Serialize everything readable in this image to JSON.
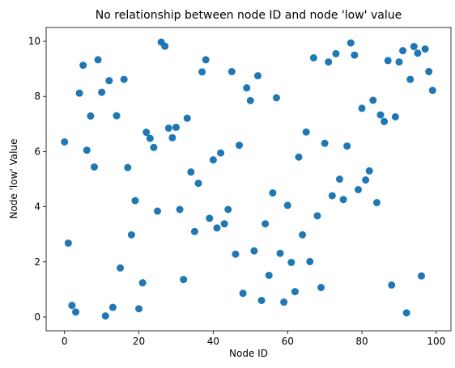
{
  "chart_data": {
    "type": "scatter",
    "title": "No relationship between node ID and node 'low' value",
    "xlabel": "Node ID",
    "ylabel": "Node 'low' Value",
    "color": "#1f77b4",
    "x": [
      0,
      1,
      2,
      3,
      4,
      5,
      6,
      7,
      8,
      9,
      10,
      11,
      12,
      13,
      14,
      15,
      16,
      17,
      18,
      19,
      20,
      21,
      22,
      23,
      24,
      25,
      26,
      27,
      28,
      29,
      30,
      31,
      32,
      33,
      34,
      35,
      36,
      37,
      38,
      39,
      40,
      41,
      42,
      43,
      44,
      45,
      46,
      47,
      48,
      49,
      50,
      51,
      52,
      53,
      54,
      55,
      56,
      57,
      58,
      59,
      60,
      61,
      62,
      63,
      64,
      65,
      66,
      67,
      68,
      69,
      70,
      71,
      72,
      73,
      74,
      75,
      76,
      77,
      78,
      79,
      80,
      81,
      82,
      83,
      84,
      85,
      86,
      87,
      88,
      89,
      90,
      91,
      92,
      93,
      94,
      95,
      96,
      97,
      98,
      99
    ],
    "values": [
      6.35,
      2.68,
      0.42,
      0.18,
      8.12,
      9.13,
      6.05,
      7.29,
      5.44,
      9.33,
      8.15,
      0.04,
      8.57,
      0.35,
      7.3,
      1.78,
      8.62,
      5.42,
      2.98,
      4.22,
      0.3,
      1.24,
      6.7,
      6.48,
      6.15,
      3.84,
      9.97,
      9.82,
      6.85,
      6.5,
      6.88,
      3.9,
      1.36,
      7.21,
      5.26,
      3.1,
      4.85,
      8.89,
      9.33,
      3.58,
      5.7,
      3.23,
      5.95,
      3.38,
      3.9,
      8.9,
      2.28,
      6.23,
      0.86,
      8.31,
      7.85,
      2.4,
      8.75,
      0.6,
      3.38,
      1.51,
      4.5,
      7.95,
      2.31,
      0.54,
      4.05,
      1.98,
      0.92,
      5.8,
      2.98,
      6.71,
      2.01,
      9.4,
      3.67,
      1.07,
      6.3,
      9.25,
      4.4,
      9.55,
      5.0,
      4.26,
      6.2,
      9.94,
      9.5,
      4.62,
      7.57,
      4.97,
      5.3,
      7.86,
      4.15,
      7.33,
      7.09,
      9.3,
      1.16,
      7.26,
      9.25,
      9.66,
      0.15,
      8.62,
      9.81,
      9.57,
      1.49,
      9.72,
      8.9,
      8.22
    ],
    "xlim": [
      -4.95,
      103.95
    ],
    "xticks": [
      0,
      20,
      40,
      60,
      80,
      100
    ],
    "ylim": [
      -0.5,
      10.5
    ],
    "yticks": [
      0,
      2,
      4,
      6,
      8,
      10
    ]
  }
}
